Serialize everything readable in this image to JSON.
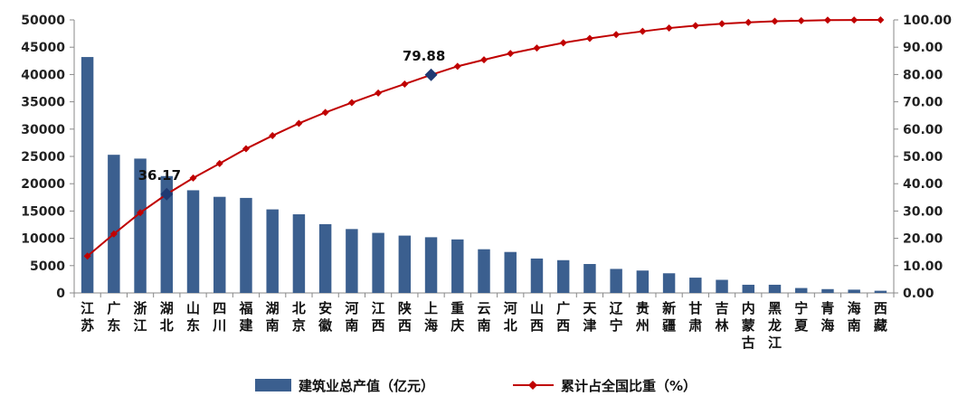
{
  "chart_data": {
    "type": "bar",
    "categories": [
      "江苏",
      "广东",
      "浙江",
      "湖北",
      "山东",
      "四川",
      "福建",
      "湖南",
      "北京",
      "安徽",
      "河南",
      "江西",
      "陕西",
      "上海",
      "重庆",
      "云南",
      "河北",
      "山西",
      "广西",
      "天津",
      "辽宁",
      "贵州",
      "新疆",
      "甘肃",
      "吉林",
      "内蒙古",
      "黑龙江",
      "宁夏",
      "青海",
      "海南",
      "西藏"
    ],
    "series": [
      {
        "name": "建筑业总产值（亿元）",
        "type": "bar",
        "axis": "left",
        "color": "#3b5f8f",
        "values": [
          43200,
          25300,
          24600,
          21400,
          18800,
          17600,
          17400,
          15300,
          14400,
          12600,
          11700,
          11000,
          10500,
          10200,
          9800,
          8000,
          7500,
          6300,
          6000,
          5300,
          4400,
          4100,
          3600,
          2800,
          2400,
          1500,
          1500,
          900,
          700,
          600,
          400
        ]
      },
      {
        "name": "累计占全国比重（%）",
        "type": "line",
        "axis": "right",
        "color": "#c00000",
        "values": [
          13.5,
          21.6,
          29.4,
          36.17,
          42.1,
          47.4,
          52.8,
          57.6,
          62.1,
          66.1,
          69.7,
          73.2,
          76.5,
          79.88,
          83.0,
          85.4,
          87.7,
          89.7,
          91.6,
          93.2,
          94.6,
          95.8,
          97.0,
          97.9,
          98.6,
          99.1,
          99.5,
          99.7,
          99.9,
          99.97,
          100.0
        ]
      }
    ],
    "y_left": {
      "ylim": [
        0,
        50000
      ],
      "ticks": [
        "0",
        "5000",
        "10000",
        "15000",
        "20000",
        "25000",
        "30000",
        "35000",
        "40000",
        "45000",
        "50000"
      ]
    },
    "y_right": {
      "ylim": [
        0,
        100
      ],
      "ticks": [
        "0.00",
        "10.00",
        "20.00",
        "30.00",
        "40.00",
        "50.00",
        "60.00",
        "70.00",
        "80.00",
        "90.00",
        "100.00"
      ]
    },
    "annotations": [
      {
        "index": 3,
        "text": "36.17",
        "highlight_color": "#1f3a73"
      },
      {
        "index": 13,
        "text": "79.88",
        "highlight_color": "#1f3a73"
      }
    ],
    "grid": false,
    "legend": "bottom"
  }
}
